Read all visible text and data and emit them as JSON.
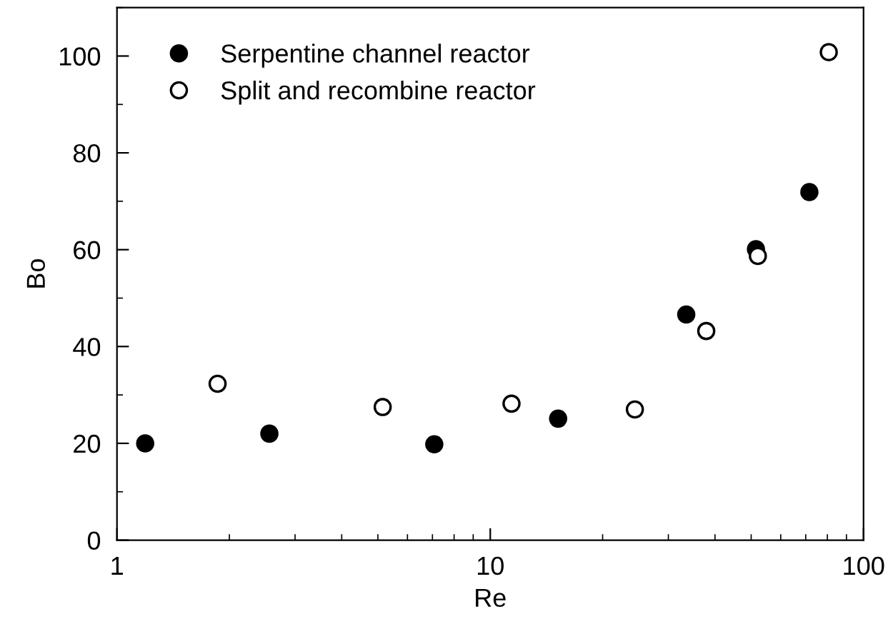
{
  "chart_data": {
    "type": "scatter",
    "xlabel": "Re",
    "ylabel": "Bo",
    "log": "x",
    "xlim": [
      1,
      100
    ],
    "xticks": [
      1,
      10,
      100
    ],
    "ylim": [
      0,
      110
    ],
    "yticks": [
      0,
      20,
      40,
      60,
      80,
      100
    ],
    "grid": false,
    "legend": "top left",
    "marker": "circle",
    "series": [
      {
        "name": "Serpentine channel reactor",
        "color": "#000000",
        "x": [
          1.19,
          2.56,
          7.08,
          15.2,
          33.5,
          51.5,
          71.6
        ],
        "values": [
          20.0,
          22.0,
          19.8,
          25.1,
          46.6,
          60.1,
          71.9
        ]
      },
      {
        "name": "Split and recombine reactor",
        "color": "#ffffff",
        "x": [
          1.86,
          5.15,
          11.4,
          24.4,
          37.9,
          52.1,
          80.7
        ],
        "values": [
          32.3,
          27.5,
          28.2,
          27.0,
          43.2,
          58.7,
          100.8
        ]
      }
    ]
  }
}
